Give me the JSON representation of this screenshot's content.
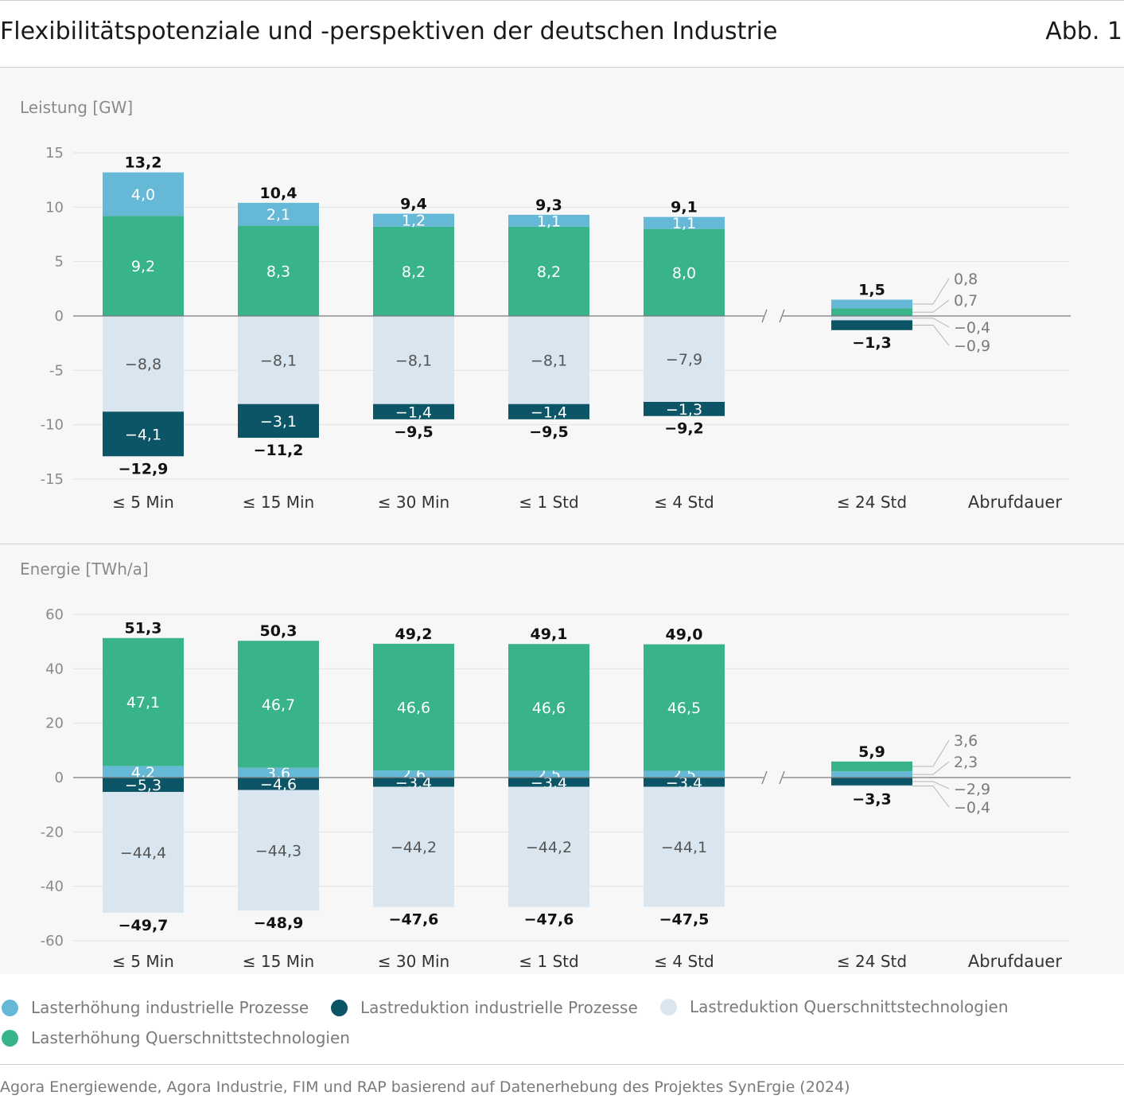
{
  "header": {
    "title": "Flexibilitätspotenziale und -perspektiven der deutschen Industrie",
    "figure_number": "Abb. 1"
  },
  "colors": {
    "lasterhoehung_prozesse": "#66b9d6",
    "lasterhoehung_querschnitt": "#38b38a",
    "lastreduktion_prozesse": "#0b5566",
    "lastreduktion_querschnitt": "#d9e6ef"
  },
  "chart_data": [
    {
      "type": "bar",
      "stacked": true,
      "title": "",
      "ylabel": "Leistung [GW]",
      "xlabel": "Abrufdauer",
      "categories": [
        "≤ 5 Min",
        "≤ 15 Min",
        "≤ 30 Min",
        "≤ 1 Std",
        "≤ 4 Std",
        "≤ 24 Std"
      ],
      "axis_break_between": [
        "≤ 4 Std",
        "≤ 24 Std"
      ],
      "ylim": [
        -15,
        15
      ],
      "yticks": [
        "15",
        "10",
        "5",
        "0",
        "-5",
        "-10",
        "-15"
      ],
      "ytick_values": [
        15,
        10,
        5,
        0,
        -5,
        -10,
        -15
      ],
      "grid": true,
      "series": [
        {
          "name": "Lasterhöhung Querschnittstechnologien",
          "values": [
            9.2,
            8.3,
            8.2,
            8.2,
            8.0,
            0.7
          ],
          "labels": [
            "9,2",
            "8,3",
            "8,2",
            "8,2",
            "8,0",
            "0,7"
          ]
        },
        {
          "name": "Lasterhöhung industrielle Prozesse",
          "values": [
            4.0,
            2.1,
            1.2,
            1.1,
            1.1,
            0.8
          ],
          "labels": [
            "4,0",
            "2,1",
            "1,2",
            "1,1",
            "1,1",
            "0,8"
          ]
        },
        {
          "name": "Lastreduktion Querschnittstechnologien",
          "values": [
            -8.8,
            -8.1,
            -8.1,
            -8.1,
            -7.9,
            -0.4
          ],
          "labels": [
            "−8,8",
            "−8,1",
            "−8,1",
            "−8,1",
            "−7,9",
            "−0,4"
          ]
        },
        {
          "name": "Lastreduktion industrielle Prozesse",
          "values": [
            -4.1,
            -3.1,
            -1.4,
            -1.4,
            -1.3,
            -0.9
          ],
          "labels": [
            "−4,1",
            "−3,1",
            "−1,4",
            "−1,4",
            "−1,3",
            "−0,9"
          ]
        }
      ],
      "totals_positive": [
        13.2,
        10.4,
        9.4,
        9.3,
        9.1,
        1.5
      ],
      "totals_positive_labels": [
        "13,2",
        "10,4",
        "9,4",
        "9,3",
        "9,1",
        "1,5"
      ],
      "totals_negative": [
        -12.9,
        -11.2,
        -9.5,
        -9.5,
        -9.2,
        -1.3
      ],
      "totals_negative_labels": [
        "−12,9",
        "−11,2",
        "−9,5",
        "−9,5",
        "−9,2",
        "−1,3"
      ]
    },
    {
      "type": "bar",
      "stacked": true,
      "title": "",
      "ylabel": "Energie [TWh/a]",
      "xlabel": "Abrufdauer",
      "categories": [
        "≤ 5 Min",
        "≤ 15 Min",
        "≤ 30 Min",
        "≤ 1 Std",
        "≤ 4 Std",
        "≤ 24 Std"
      ],
      "axis_break_between": [
        "≤ 4 Std",
        "≤ 24 Std"
      ],
      "ylim": [
        -60,
        60
      ],
      "yticks": [
        "60",
        "40",
        "20",
        "0",
        "-20",
        "-40",
        "-60"
      ],
      "ytick_values": [
        60,
        40,
        20,
        0,
        -20,
        -40,
        -60
      ],
      "grid": true,
      "series": [
        {
          "name": "Lasterhöhung industrielle Prozesse",
          "values": [
            4.2,
            3.6,
            2.6,
            2.5,
            2.5,
            2.3
          ],
          "labels": [
            "4,2",
            "3,6",
            "2,6",
            "2,5",
            "2,5",
            "2,3"
          ]
        },
        {
          "name": "Lasterhöhung Querschnittstechnologien",
          "values": [
            47.1,
            46.7,
            46.6,
            46.6,
            46.5,
            3.6
          ],
          "labels": [
            "47,1",
            "46,7",
            "46,6",
            "46,6",
            "46,5",
            "3,6"
          ]
        },
        {
          "name": "Lastreduktion industrielle Prozesse",
          "values": [
            -5.3,
            -4.6,
            -3.4,
            -3.4,
            -3.4,
            -2.9
          ],
          "labels": [
            "−5,3",
            "−4,6",
            "−3,4",
            "−3,4",
            "−3,4",
            "−2,9"
          ]
        },
        {
          "name": "Lastreduktion Querschnittstechnologien",
          "values": [
            -44.4,
            -44.3,
            -44.2,
            -44.2,
            -44.1,
            -0.4
          ],
          "labels": [
            "−44,4",
            "−44,3",
            "−44,2",
            "−44,2",
            "−44,1",
            "−0,4"
          ]
        }
      ],
      "totals_positive": [
        51.3,
        50.3,
        49.2,
        49.1,
        49.0,
        5.9
      ],
      "totals_positive_labels": [
        "51,3",
        "50,3",
        "49,2",
        "49,1",
        "49,0",
        "5,9"
      ],
      "totals_negative": [
        -49.7,
        -48.9,
        -47.6,
        -47.6,
        -47.5,
        -3.3
      ],
      "totals_negative_labels": [
        "−49,7",
        "−48,9",
        "−47,6",
        "−47,6",
        "−47,5",
        "−3,3"
      ]
    }
  ],
  "legend": {
    "placement": "bottom",
    "items": [
      {
        "label": "Lasterhöhung industrielle Prozesse",
        "color": "#66b9d6"
      },
      {
        "label": "Lastreduktion industrielle Prozesse",
        "color": "#0b5566"
      },
      {
        "label": "Lastreduktion Querschnittstechnologien",
        "color": "#d9e6ef"
      },
      {
        "label": "Lasterhöhung Querschnittstechnologien",
        "color": "#38b38a"
      }
    ]
  },
  "source": "Agora Energiewende, Agora Industrie, FIM und RAP basierend auf Datenerhebung des Projektes SynErgie (2024)"
}
